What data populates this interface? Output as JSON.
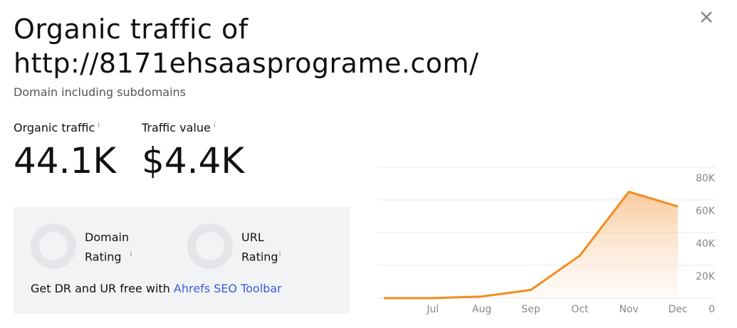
{
  "header": {
    "title_line1": "Organic traffic of",
    "title_line2": "http://8171ehsaasprograme.com/",
    "subtitle": "Domain including subdomains"
  },
  "info_mark": "i",
  "metrics": [
    {
      "label": "Organic traffic",
      "value": "44.1K"
    },
    {
      "label": "Traffic value",
      "value": "$4.4K"
    }
  ],
  "ratings": [
    {
      "label_line1": "Domain",
      "label_line2": "Rating"
    },
    {
      "label_line1": "URL",
      "label_line2": "Rating"
    }
  ],
  "promo": {
    "text": "Get DR and UR free with",
    "link": "Ahrefs SEO Toolbar"
  },
  "chart_data": {
    "type": "area",
    "color": "#f28c1e",
    "categories": [
      null,
      "Jul",
      "Aug",
      "Sep",
      "Oct",
      "Nov",
      "Dec"
    ],
    "values": [
      0,
      0,
      1000,
      5000,
      26000,
      65000,
      56000
    ],
    "ylim": [
      0,
      80000
    ],
    "yticks": [
      0,
      {
        "value": 20000,
        "label": "20K"
      },
      {
        "value": 40000,
        "label": "40K"
      },
      {
        "value": 60000,
        "label": "60K"
      },
      {
        "value": 80000,
        "label": "80K"
      }
    ],
    "grid": true
  }
}
